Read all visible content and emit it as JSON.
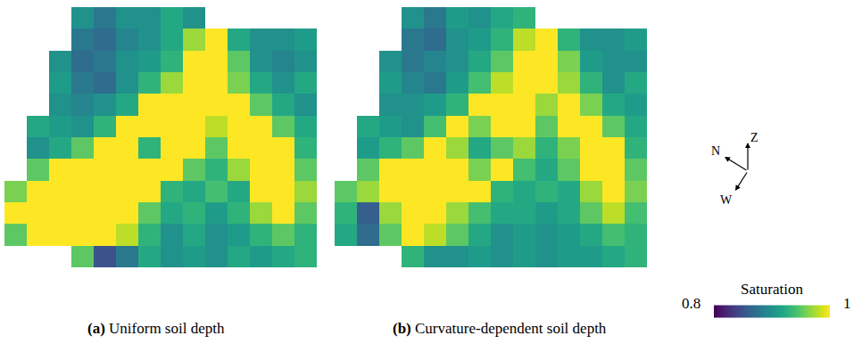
{
  "chart_data": {
    "type": "heatmap",
    "tick_labels": false,
    "color": "Viridis",
    "colorbar": {
      "title": "Saturation",
      "range": [
        0.8,
        1
      ],
      "ticks": [
        0.8,
        1
      ]
    },
    "compass": {
      "north": "N",
      "up": "Z",
      "west": "W"
    },
    "panels": [
      {
        "label": "(a)",
        "caption": "Uniform soil depth",
        "cells": [
          [
            null,
            null,
            null,
            0.9,
            0.88,
            0.9,
            0.9,
            0.92,
            0.9,
            null,
            null,
            null,
            null,
            null
          ],
          [
            null,
            null,
            null,
            0.88,
            0.87,
            0.89,
            0.9,
            0.92,
            0.97,
            1,
            0.92,
            0.9,
            0.9,
            0.91
          ],
          [
            null,
            null,
            0.9,
            0.87,
            0.88,
            0.9,
            0.91,
            0.93,
            1,
            1,
            0.95,
            0.9,
            0.89,
            0.9
          ],
          [
            null,
            null,
            0.91,
            0.88,
            0.87,
            0.9,
            0.93,
            0.97,
            1,
            1,
            0.96,
            0.92,
            0.9,
            0.92
          ],
          [
            null,
            null,
            0.9,
            0.89,
            0.9,
            0.92,
            1,
            1,
            1,
            1,
            1,
            0.95,
            0.92,
            0.9
          ],
          [
            null,
            0.92,
            0.91,
            0.9,
            0.93,
            1,
            1,
            1,
            1,
            0.98,
            1,
            1,
            0.95,
            0.92
          ],
          [
            null,
            0.9,
            0.92,
            0.95,
            1,
            1,
            0.93,
            1,
            1,
            0.95,
            1,
            1,
            1,
            0.93
          ],
          [
            null,
            0.95,
            1,
            1,
            1,
            1,
            1,
            1,
            0.95,
            0.93,
            0.97,
            1,
            1,
            0.95
          ],
          [
            0.96,
            1,
            1,
            1,
            1,
            1,
            1,
            0.93,
            0.92,
            0.94,
            0.92,
            1,
            1,
            0.97
          ],
          [
            1,
            1,
            1,
            1,
            1,
            1,
            0.95,
            0.92,
            0.93,
            0.91,
            0.93,
            0.97,
            1,
            0.95
          ],
          [
            0.95,
            1,
            1,
            1,
            1,
            0.98,
            0.93,
            0.9,
            0.92,
            0.9,
            0.91,
            0.93,
            0.95,
            0.93
          ],
          [
            null,
            null,
            null,
            0.95,
            0.85,
            0.88,
            0.92,
            0.9,
            0.91,
            0.9,
            0.92,
            0.91,
            0.92,
            0.93
          ]
        ]
      },
      {
        "label": "(b)",
        "caption": "Curvature-dependent soil depth",
        "cells": [
          [
            null,
            null,
            null,
            0.9,
            0.88,
            0.91,
            0.9,
            0.92,
            0.93,
            null,
            null,
            null,
            null,
            null
          ],
          [
            null,
            null,
            null,
            0.88,
            0.87,
            0.9,
            0.91,
            0.93,
            0.98,
            1,
            0.93,
            0.9,
            0.9,
            0.91
          ],
          [
            null,
            null,
            0.9,
            0.88,
            0.89,
            0.9,
            0.92,
            0.95,
            1,
            1,
            0.96,
            0.91,
            0.9,
            0.9
          ],
          [
            null,
            null,
            0.91,
            0.89,
            0.88,
            0.91,
            0.94,
            0.98,
            1,
            1,
            0.97,
            0.93,
            0.9,
            0.92
          ],
          [
            null,
            null,
            0.9,
            0.9,
            0.91,
            0.93,
            1,
            1,
            1,
            0.97,
            1,
            0.96,
            0.92,
            0.91
          ],
          [
            null,
            0.92,
            0.91,
            0.9,
            0.94,
            1,
            0.96,
            1,
            1,
            0.95,
            1,
            1,
            0.95,
            0.92
          ],
          [
            null,
            0.91,
            0.93,
            0.95,
            1,
            0.97,
            0.92,
            0.95,
            0.97,
            0.93,
            0.96,
            1,
            1,
            0.93
          ],
          [
            null,
            0.95,
            1,
            1,
            1,
            1,
            0.96,
            1,
            0.94,
            0.92,
            0.95,
            1,
            1,
            0.95
          ],
          [
            0.95,
            0.97,
            1,
            1,
            1,
            1,
            1,
            0.93,
            0.92,
            0.93,
            0.92,
            0.97,
            1,
            0.96
          ],
          [
            0.93,
            0.86,
            0.97,
            1,
            1,
            0.97,
            0.94,
            0.92,
            0.92,
            0.91,
            0.92,
            0.95,
            0.98,
            0.94
          ],
          [
            0.92,
            0.87,
            0.95,
            1,
            0.98,
            0.95,
            0.92,
            0.9,
            0.91,
            0.9,
            0.91,
            0.92,
            0.94,
            0.93
          ],
          [
            null,
            null,
            null,
            0.93,
            0.9,
            0.9,
            0.91,
            0.9,
            0.91,
            0.9,
            0.91,
            0.91,
            0.92,
            0.93
          ]
        ]
      }
    ]
  }
}
